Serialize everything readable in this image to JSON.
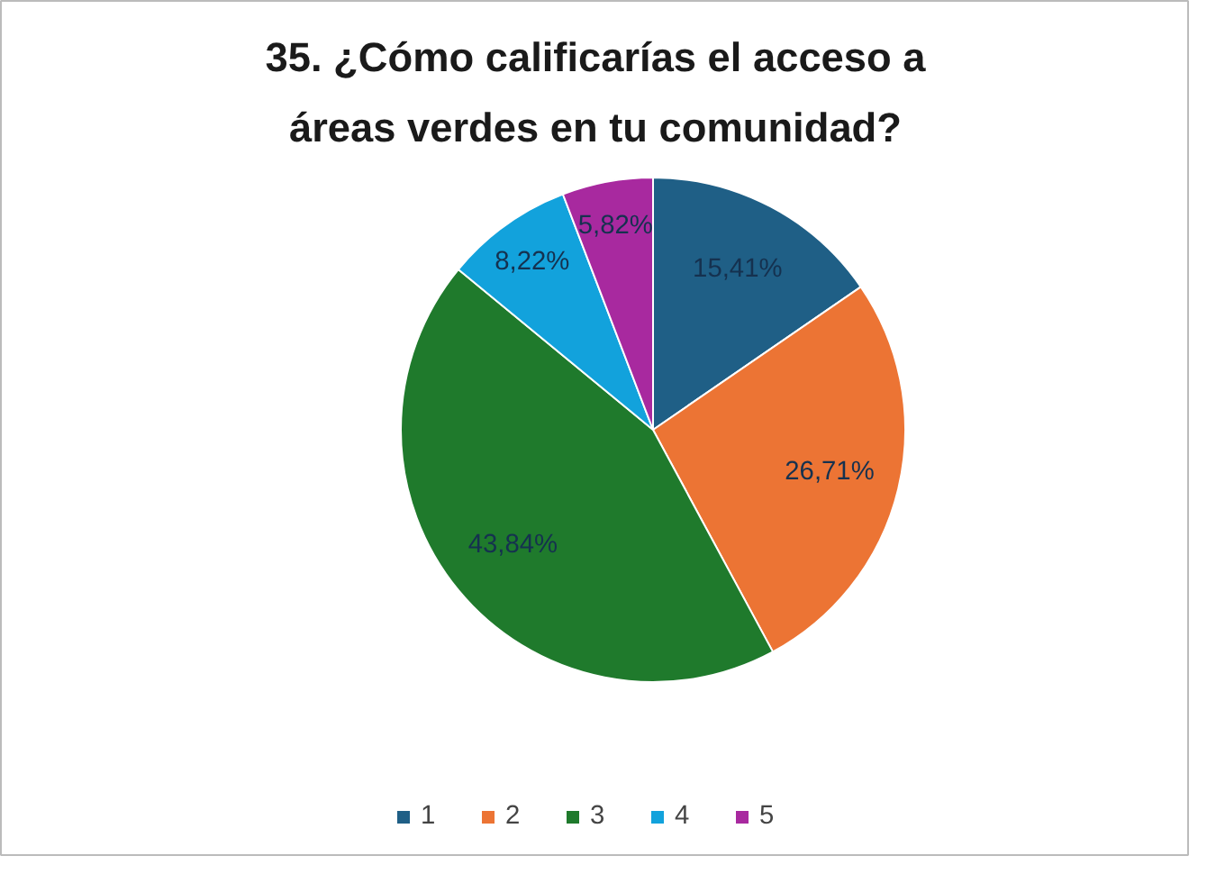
{
  "chart_data": {
    "type": "pie",
    "title": "35. ¿Cómo calificarías el acceso a áreas verdes en tu comunidad?",
    "categories": [
      "1",
      "2",
      "3",
      "4",
      "5"
    ],
    "values": [
      15.41,
      26.71,
      43.84,
      8.22,
      5.82
    ],
    "colors": [
      "#1f5f86",
      "#ec7434",
      "#1f7a2c",
      "#12a2dc",
      "#a8299f"
    ],
    "value_labels": [
      "15,41%",
      "26,71%",
      "43,84%",
      "8,22%",
      "5,82%"
    ],
    "legend": "bottom"
  }
}
